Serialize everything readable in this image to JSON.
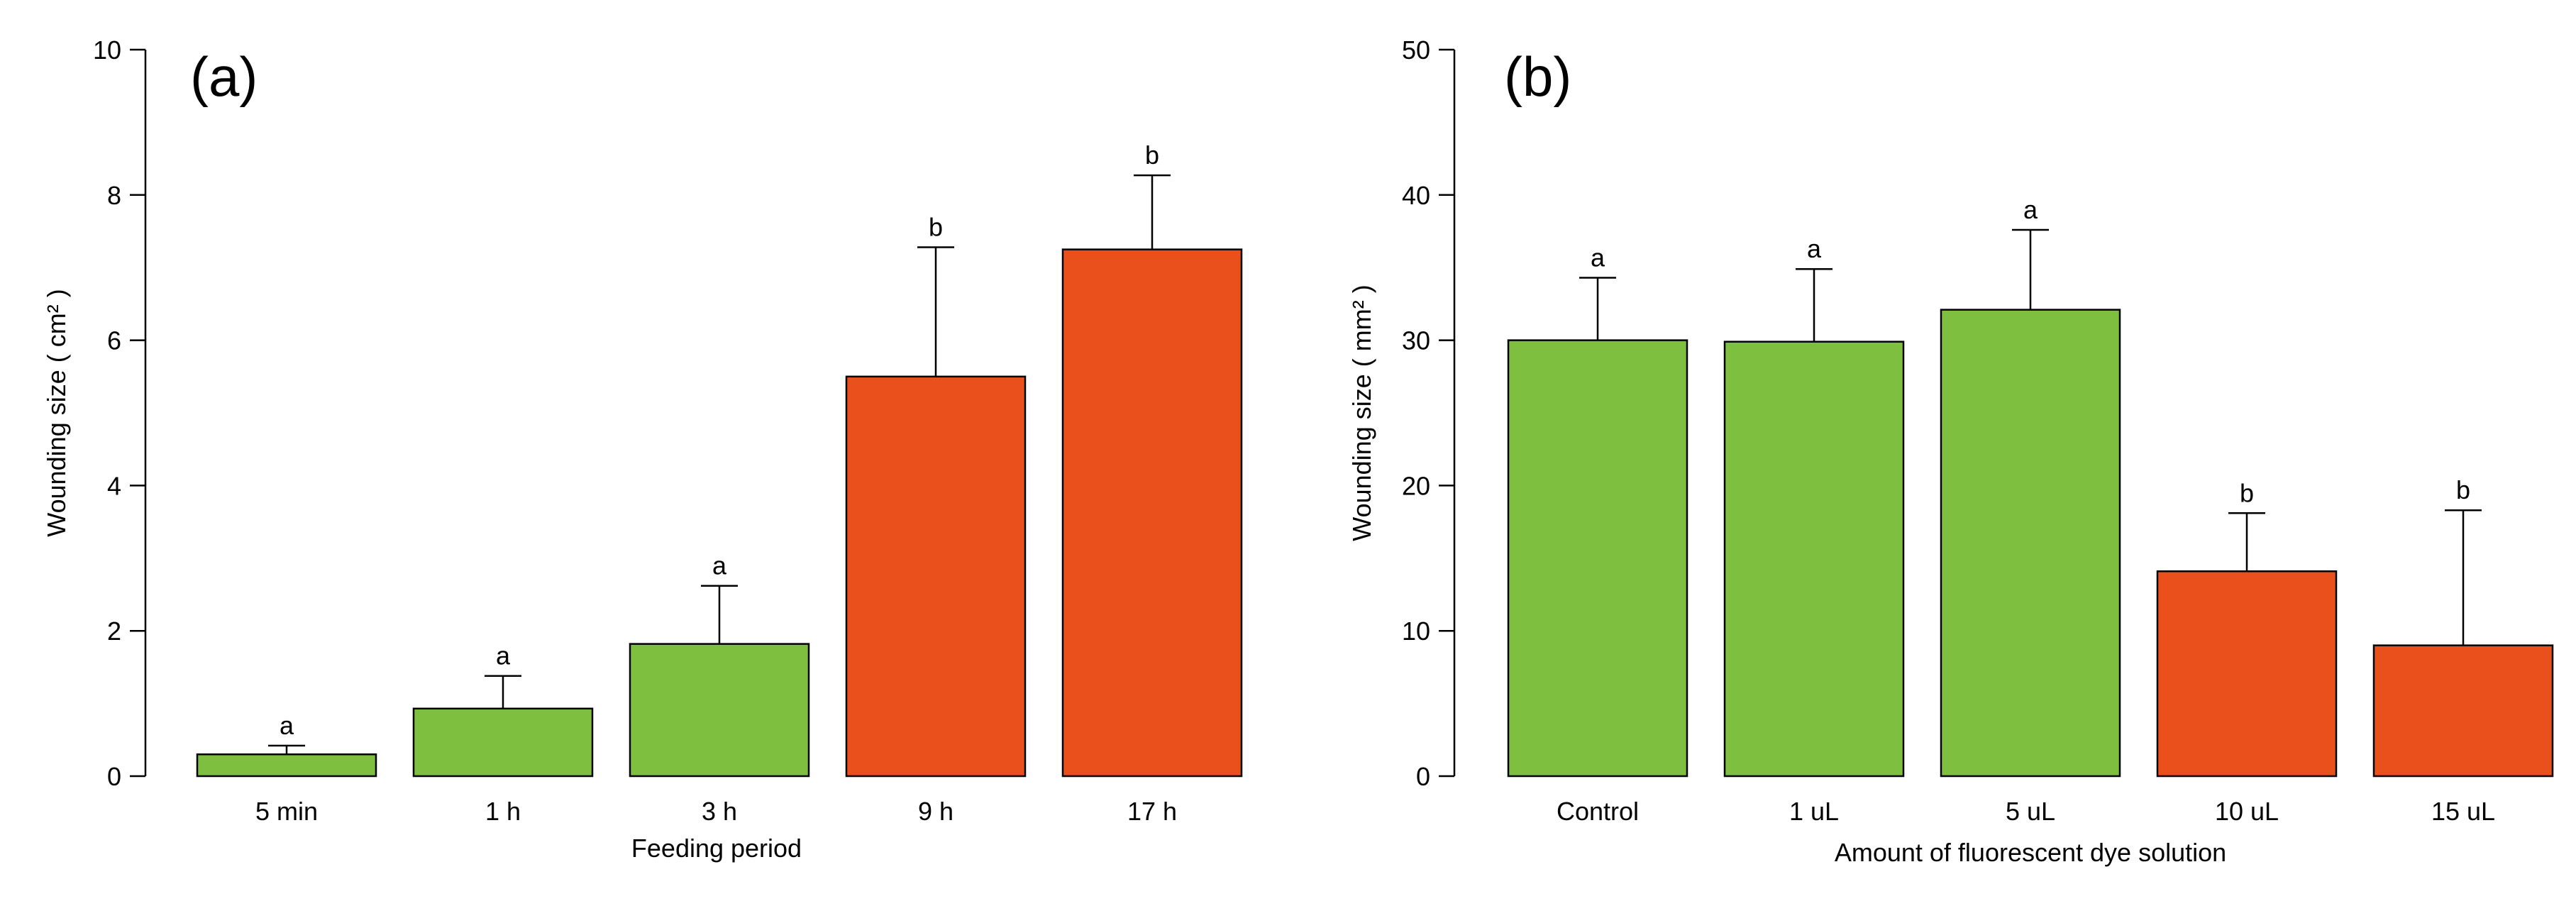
{
  "chart_data": [
    {
      "type": "bar",
      "panel_label": "(a)",
      "categories": [
        "5 min",
        "1 h",
        "3 h",
        "9 h",
        "17 h"
      ],
      "values": [
        0.3,
        0.93,
        1.82,
        5.5,
        7.25
      ],
      "errors": [
        0.12,
        0.45,
        0.8,
        1.78,
        1.02
      ],
      "significance": [
        "a",
        "a",
        "a",
        "b",
        "b"
      ],
      "bar_colors": [
        "#7fbf3f",
        "#7fbf3f",
        "#7fbf3f",
        "#ea501c",
        "#ea501c"
      ],
      "xlabel": "Feeding period",
      "ylabel": "Wounding size ( cm² )",
      "ylim": [
        0,
        10
      ],
      "yticks": [
        0,
        2,
        4,
        6,
        8,
        10
      ],
      "ytick_labels": [
        "0",
        "2",
        "4",
        "6",
        "8",
        "10"
      ],
      "grid": false
    },
    {
      "type": "bar",
      "panel_label": "(b)",
      "categories": [
        "Control",
        "1 uL",
        "5 uL",
        "10 uL",
        "15 uL"
      ],
      "values": [
        30.0,
        29.9,
        32.1,
        14.1,
        9.0
      ],
      "errors": [
        4.3,
        5.0,
        5.5,
        4.0,
        9.3
      ],
      "significance": [
        "a",
        "a",
        "a",
        "b",
        "b"
      ],
      "bar_colors": [
        "#7fbf3f",
        "#7fbf3f",
        "#7fbf3f",
        "#ea501c",
        "#ea501c"
      ],
      "xlabel": "Amount of fluorescent dye solution",
      "ylabel": "Wounding size ( mm² )",
      "ylim": [
        0,
        50
      ],
      "yticks": [
        0,
        10,
        20,
        30,
        40,
        50
      ],
      "ytick_labels": [
        "0",
        "10",
        "20",
        "30",
        "40",
        "50"
      ],
      "grid": false
    }
  ]
}
